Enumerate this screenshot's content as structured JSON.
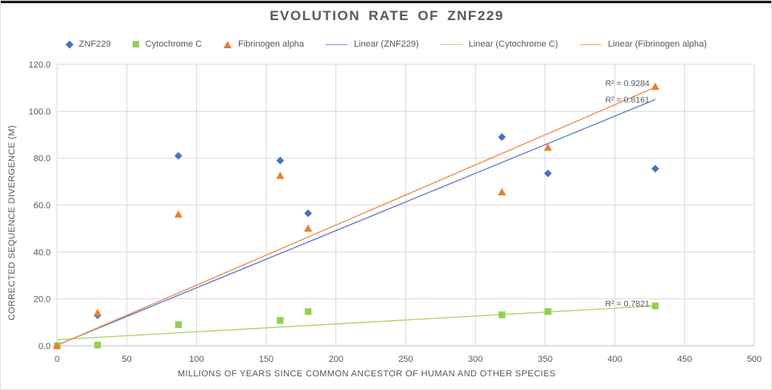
{
  "chart": {
    "title": "EVOLUTION RATE OF ZNF229",
    "legend_items": [
      {
        "label": "ZNF229",
        "marker": "diamond",
        "color": "#4472C4"
      },
      {
        "label": "Cytochrome C",
        "marker": "square",
        "color": "#92D050"
      },
      {
        "label": "Fibrinogen alpha",
        "marker": "triangle",
        "color": "#ED7D31"
      },
      {
        "label": "Linear (ZNF229)",
        "marker": "line",
        "color": "#7C90D8"
      },
      {
        "label": "Linear (Cytochrome C)",
        "marker": "line",
        "color": "#B8DC7E"
      },
      {
        "label": "Linear (Fibrinogen alpha)",
        "marker": "line",
        "color": "#F0A26A"
      }
    ]
  },
  "colors": {
    "gridline": "#D9D9D9",
    "axis_line": "#BFBFBF",
    "text": "#595959",
    "znf229_blue": "#4472C4",
    "cytochrome_green": "#92D050",
    "fibrinogen_orange": "#ED7D31"
  },
  "chart_data": {
    "type": "scatter",
    "title": "EVOLUTION RATE OF ZNF229",
    "xlabel": "MILLIONS OF YEARS SINCE COMMON ANCESTOR OF HUMAN AND OTHER SPECIES",
    "ylabel": "CORRECTED SEQUENCE DIVERGENCE (M)",
    "xlim": [
      0,
      500
    ],
    "ylim": [
      0,
      120
    ],
    "x_ticks": [
      0,
      50,
      100,
      150,
      200,
      250,
      300,
      350,
      400,
      450,
      500
    ],
    "y_tick_labels": [
      "0.0",
      "20.0",
      "40.0",
      "60.0",
      "80.0",
      "100.0",
      "120.0"
    ],
    "grid": true,
    "legend_position": "top",
    "x": [
      0,
      29,
      87,
      160,
      180,
      319,
      352,
      429
    ],
    "series": [
      {
        "name": "ZNF229",
        "marker": "diamond",
        "color": "#4472C4",
        "values": [
          0,
          13,
          81,
          79,
          56.5,
          89,
          73.5,
          75.5
        ]
      },
      {
        "name": "Cytochrome C",
        "marker": "square",
        "color": "#92D050",
        "values": [
          0,
          0.3,
          9,
          10.8,
          14.6,
          13.2,
          14.6,
          17
        ]
      },
      {
        "name": "Fibrinogen alpha",
        "marker": "triangle",
        "color": "#ED7D31",
        "values": [
          0,
          14,
          56,
          72.5,
          50,
          65.5,
          84.5,
          110.5
        ]
      }
    ],
    "trendlines": [
      {
        "name": "Linear (ZNF229)",
        "color": "#5B79D0",
        "x0": 0,
        "y0": 0.3,
        "x1": 429,
        "y1": 105.0,
        "r2": "R² = 0.8161",
        "r2_x": 409,
        "r2_y": 105
      },
      {
        "name": "Linear (Cytochrome C)",
        "color": "#A9D45F",
        "x0": 0,
        "y0": 2.6,
        "x1": 429,
        "y1": 17.0,
        "r2": "R² = 0.7821",
        "r2_x": 409,
        "r2_y": 18
      },
      {
        "name": "Linear (Fibrinogen alpha)",
        "color": "#ED8A45",
        "x0": 0,
        "y0": 0.2,
        "x1": 429,
        "y1": 110.2,
        "r2": "R² = 0.9284",
        "r2_x": 409,
        "r2_y": 112
      }
    ]
  }
}
